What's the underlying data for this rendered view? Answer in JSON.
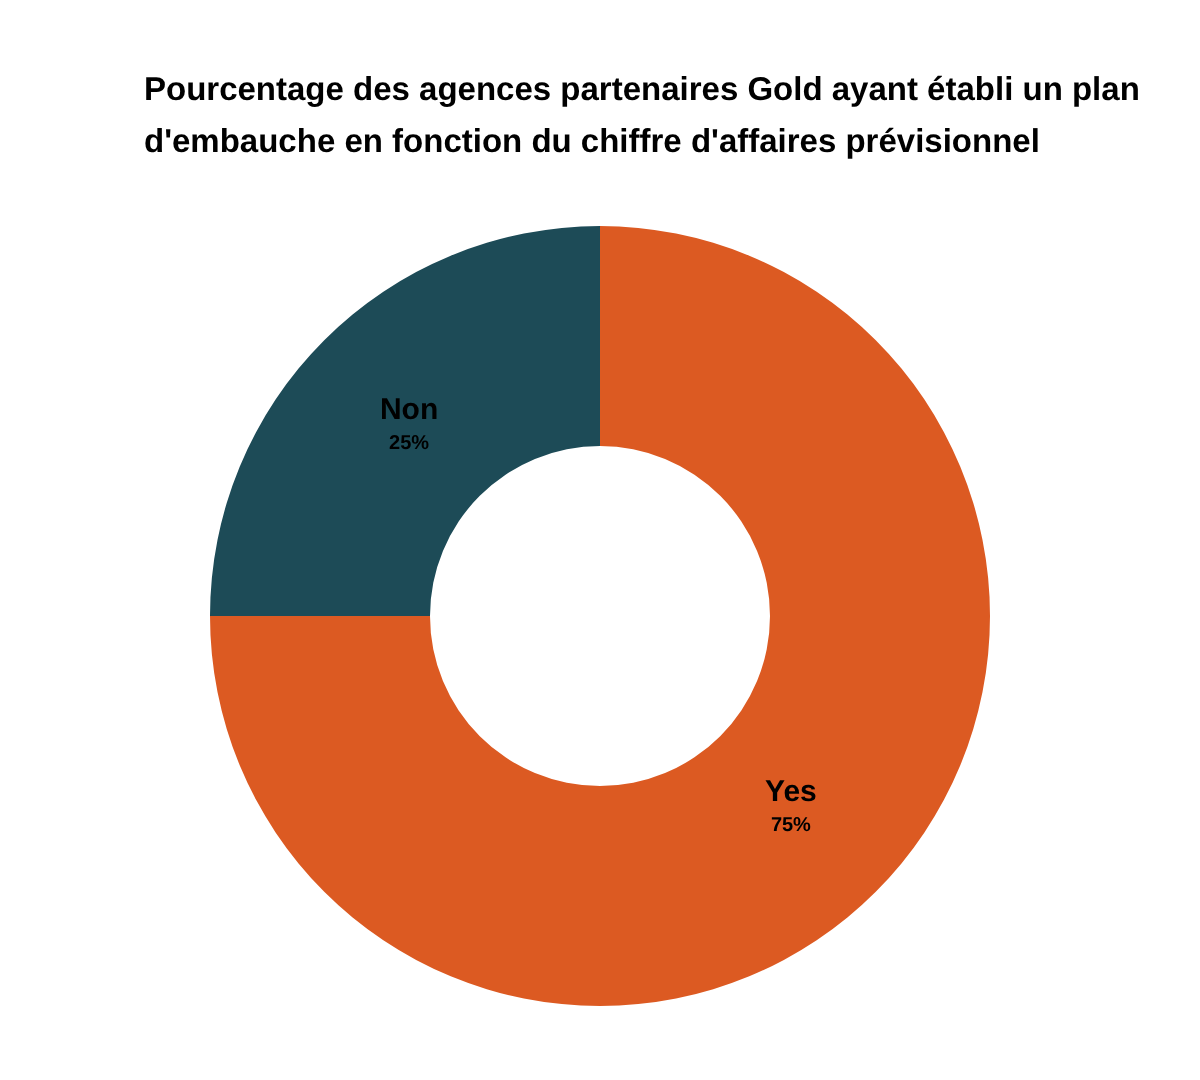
{
  "chart_data": {
    "type": "donut",
    "title": "Pourcentage des agences partenaires Gold ayant établi un plan d'embauche en fonction du chiffre d'affaires prévisionnel",
    "categories": [
      "Yes",
      "Non"
    ],
    "values": [
      75,
      25
    ],
    "colors": [
      "#dc5a22",
      "#1d4b57"
    ],
    "value_labels": [
      "75%",
      "25%"
    ],
    "legend": false
  }
}
